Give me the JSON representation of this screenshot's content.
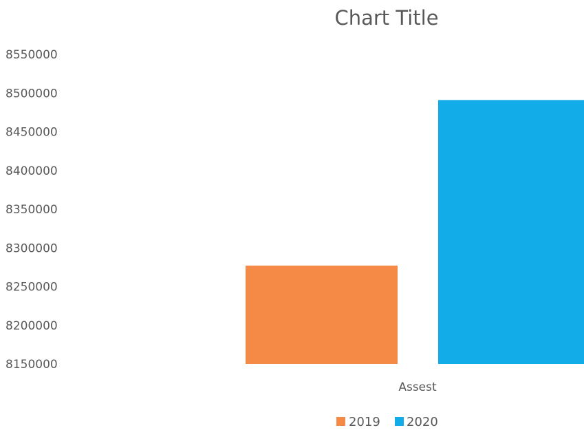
{
  "chart_data": {
    "type": "bar",
    "title": "Chart Title",
    "categories": [
      "Assest"
    ],
    "series": [
      {
        "name": "2019",
        "values": [
          8277000
        ],
        "color": "#F58A46"
      },
      {
        "name": "2020",
        "values": [
          8491000
        ],
        "color": "#12ACE8"
      }
    ],
    "ylim": [
      8150000,
      8550000
    ],
    "yticks": [
      "8550000",
      "8500000",
      "8450000",
      "8400000",
      "8350000",
      "8300000",
      "8250000",
      "8200000",
      "8150000"
    ],
    "grid": false,
    "legend": "bottom"
  }
}
